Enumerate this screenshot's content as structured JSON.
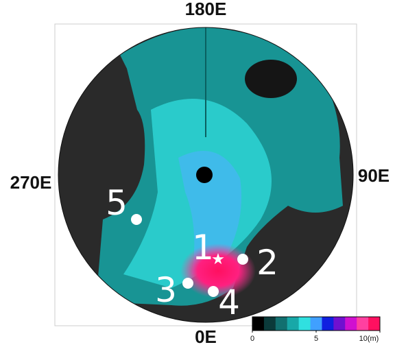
{
  "map": {
    "longitude_labels": {
      "top": "180E",
      "left": "270E",
      "right": "90E",
      "bottom": "0E"
    },
    "sites": [
      {
        "label": "1",
        "marker": "star"
      },
      {
        "label": "2",
        "marker": "circle"
      },
      {
        "label": "3",
        "marker": "circle"
      },
      {
        "label": "4",
        "marker": "circle"
      },
      {
        "label": "5",
        "marker": "circle"
      }
    ],
    "colorbar": {
      "range": [
        0,
        10
      ],
      "ticks": [
        0,
        5,
        {
          "value": 10,
          "label": "10(m)"
        }
      ],
      "colors": [
        "#000000",
        "#0b3a3a",
        "#127070",
        "#18a8a8",
        "#30e0e0",
        "#40a0ff",
        "#1020e0",
        "#7010d0",
        "#d010d0",
        "#ff40a0",
        "#ff1060"
      ]
    }
  }
}
